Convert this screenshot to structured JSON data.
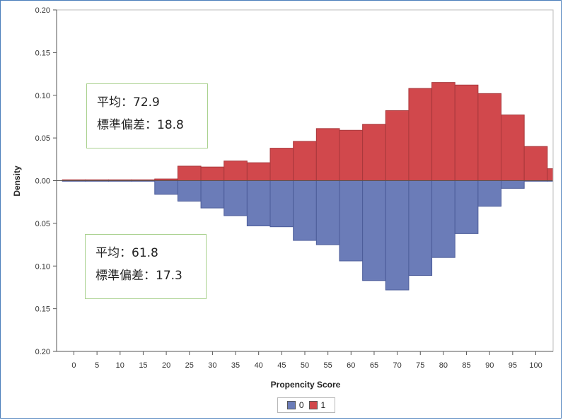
{
  "chart_data": {
    "type": "bar",
    "xlabel": "Propencity Score",
    "ylabel": "Density",
    "xlim": [
      -3.75,
      103.75
    ],
    "ylim": [
      -0.2,
      0.2
    ],
    "x_ticks": [
      0,
      5,
      10,
      15,
      20,
      25,
      30,
      35,
      40,
      45,
      50,
      55,
      60,
      65,
      70,
      75,
      80,
      85,
      90,
      95,
      100
    ],
    "y_ticks": [
      {
        "value": 0.2,
        "label": "0.20"
      },
      {
        "value": 0.15,
        "label": "0.15"
      },
      {
        "value": 0.1,
        "label": "0.10"
      },
      {
        "value": 0.05,
        "label": "0.05"
      },
      {
        "value": 0.0,
        "label": "0.00"
      },
      {
        "value": -0.05,
        "label": "0.05"
      },
      {
        "value": -0.1,
        "label": "0.10"
      },
      {
        "value": -0.15,
        "label": "0.15"
      },
      {
        "value": -0.2,
        "label": "0.20"
      }
    ],
    "bin_width": 5,
    "bin_starts": [
      -2.5,
      2.5,
      7.5,
      12.5,
      17.5,
      22.5,
      27.5,
      32.5,
      37.5,
      42.5,
      47.5,
      52.5,
      57.5,
      62.5,
      67.5,
      72.5,
      77.5,
      82.5,
      87.5,
      92.5,
      97.5,
      102.5
    ],
    "series": [
      {
        "name": "0",
        "color": "#6b7cb8",
        "direction": "down",
        "values": [
          0.0,
          0.0,
          0.0,
          0.0,
          0.016,
          0.024,
          0.032,
          0.041,
          0.053,
          0.054,
          0.07,
          0.075,
          0.094,
          0.117,
          0.128,
          0.111,
          0.09,
          0.062,
          0.03,
          0.009,
          0.0,
          0.0
        ]
      },
      {
        "name": "1",
        "color": "#d1484c",
        "direction": "up",
        "values": [
          0.001,
          0.001,
          0.001,
          0.001,
          0.002,
          0.017,
          0.016,
          0.023,
          0.021,
          0.038,
          0.046,
          0.061,
          0.059,
          0.066,
          0.082,
          0.108,
          0.115,
          0.112,
          0.102,
          0.077,
          0.04,
          0.014
        ]
      }
    ],
    "legend": {
      "position": "bottom-center",
      "entries": [
        "0",
        "1"
      ]
    },
    "annotations": [
      {
        "lines": [
          "平均：72.9",
          "標準偏差：18.8"
        ]
      },
      {
        "lines": [
          "平均：61.8",
          "標準偏差：17.3"
        ]
      }
    ]
  },
  "colors": {
    "frame_border": "#4a7ebb",
    "annotation_border": "#a9d18e"
  }
}
